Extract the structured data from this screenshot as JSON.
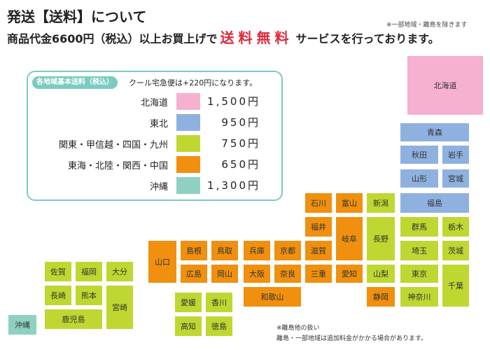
{
  "header": {
    "title": "発送【送料】について",
    "note": "※一部地域・離島を除きます",
    "sub_before": "商品代金6600円（税込）以上お買上げで",
    "sub_free": "送料無料",
    "sub_after": "サービスを行っております。"
  },
  "legend": {
    "tag": "各地域基本送料（税込）",
    "cool": "クール宅急便は+220円になります。",
    "rows": [
      {
        "name": "北海道",
        "price": "1,500円",
        "color": "#f6b0d0"
      },
      {
        "name": "東北",
        "price": "950円",
        "color": "#8fb1e0"
      },
      {
        "name": "関東・甲信越・四国・九州",
        "price": "750円",
        "color": "#bfd730"
      },
      {
        "name": "東海・北陸・関西・中国",
        "price": "650円",
        "color": "#f0900e"
      },
      {
        "name": "沖縄",
        "price": "1,300円",
        "color": "#8ed1c3"
      }
    ]
  },
  "map": {
    "hokkaido": "北海道",
    "aomori": "青森",
    "akita": "秋田",
    "iwate": "岩手",
    "yamagata": "山形",
    "miyagi": "宮城",
    "fukushima": "福島",
    "niigata": "新潟",
    "gunma": "群馬",
    "tochigi": "栃木",
    "saitama": "埼玉",
    "ibaraki": "茨城",
    "nagano": "長野",
    "yamanashi": "山梨",
    "tokyo": "東京",
    "chiba": "千葉",
    "kanagawa": "神奈川",
    "ishikawa": "石川",
    "toyama": "富山",
    "fukui": "福井",
    "gifu": "岐阜",
    "shizuoka": "静岡",
    "aichi": "愛知",
    "shiga": "滋賀",
    "mie": "三重",
    "kyoto": "京都",
    "nara": "奈良",
    "hyogo": "兵庫",
    "osaka": "大阪",
    "wakayama": "和歌山",
    "tottori": "鳥取",
    "shimane": "島根",
    "okayama": "岡山",
    "hiroshima": "広島",
    "yamaguchi": "山口",
    "kagawa": "香川",
    "ehime": "愛媛",
    "tokushima": "徳島",
    "kochi": "高知",
    "fukuoka": "福岡",
    "saga": "佐賀",
    "oita": "大分",
    "nagasaki": "長崎",
    "kumamoto": "熊本",
    "miyazaki": "宮崎",
    "kagoshima": "鹿児島",
    "okinawa": "沖縄"
  },
  "footer": {
    "note1": "※離島他の扱い",
    "note2": "離島・一部地域は追加料金がかかる場合があります。"
  }
}
